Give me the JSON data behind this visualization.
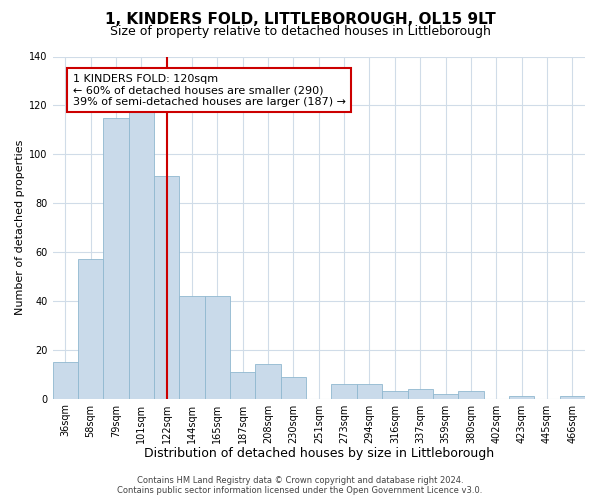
{
  "title": "1, KINDERS FOLD, LITTLEBOROUGH, OL15 9LT",
  "subtitle": "Size of property relative to detached houses in Littleborough",
  "xlabel": "Distribution of detached houses by size in Littleborough",
  "ylabel": "Number of detached properties",
  "footer_lines": [
    "Contains HM Land Registry data © Crown copyright and database right 2024.",
    "Contains public sector information licensed under the Open Government Licence v3.0."
  ],
  "categories": [
    "36sqm",
    "58sqm",
    "79sqm",
    "101sqm",
    "122sqm",
    "144sqm",
    "165sqm",
    "187sqm",
    "208sqm",
    "230sqm",
    "251sqm",
    "273sqm",
    "294sqm",
    "316sqm",
    "337sqm",
    "359sqm",
    "380sqm",
    "402sqm",
    "423sqm",
    "445sqm",
    "466sqm"
  ],
  "values": [
    15,
    57,
    115,
    118,
    91,
    42,
    42,
    11,
    14,
    9,
    0,
    6,
    6,
    3,
    4,
    2,
    3,
    0,
    1,
    0,
    1
  ],
  "bar_color": "#c9daea",
  "bar_edge_color": "#90b8d0",
  "bar_width": 1.0,
  "vline_x": 4,
  "vline_color": "#cc0000",
  "annotation_text": "1 KINDERS FOLD: 120sqm\n← 60% of detached houses are smaller (290)\n39% of semi-detached houses are larger (187) →",
  "annotation_box_color": "#ffffff",
  "annotation_box_edge_color": "#cc0000",
  "ylim": [
    0,
    140
  ],
  "yticks": [
    0,
    20,
    40,
    60,
    80,
    100,
    120,
    140
  ],
  "background_color": "#ffffff",
  "grid_color": "#d0dce8",
  "title_fontsize": 11,
  "subtitle_fontsize": 9,
  "xlabel_fontsize": 9,
  "ylabel_fontsize": 8,
  "tick_fontsize": 7,
  "annotation_fontsize": 8,
  "footer_fontsize": 6
}
